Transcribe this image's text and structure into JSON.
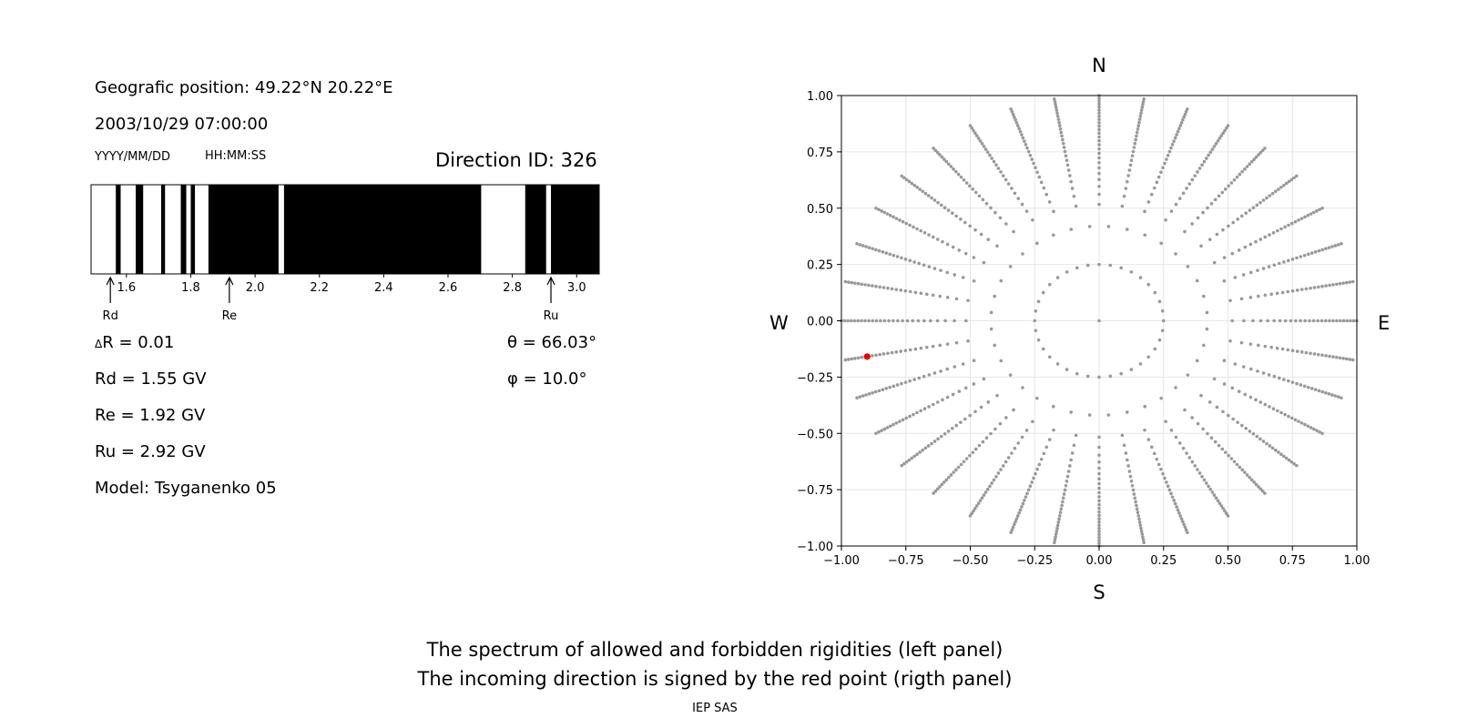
{
  "left": {
    "position_label": "Geografic position: 49.22°N 20.22°E",
    "datetime": "2003/10/29 07:00:00",
    "date_format": "YYYY/MM/DD",
    "time_format": "HH:MM:SS",
    "direction_id": "Direction ID: 326",
    "delta_r": "R = 0.01",
    "delta_symbol": "Δ",
    "rd": "Rd = 1.55 GV",
    "re": "Re = 1.92 GV",
    "ru": "Ru = 2.92 GV",
    "model": "Model: Tsyganenko 05",
    "theta": "θ = 66.03°",
    "phi": "φ = 10.0°",
    "markers": [
      {
        "label": "Rd",
        "value": 1.55
      },
      {
        "label": "Re",
        "value": 1.92
      },
      {
        "label": "Ru",
        "value": 2.92
      }
    ]
  },
  "chart_data": [
    {
      "type": "spectrum",
      "xlim": [
        1.49,
        3.07
      ],
      "ticks": [
        1.6,
        1.8,
        2.0,
        2.2,
        2.4,
        2.6,
        2.8,
        3.0
      ],
      "tick_labels": [
        "1.6",
        "1.8",
        "2.0",
        "2.2",
        "2.4",
        "2.6",
        "2.8",
        "3.0"
      ],
      "forbidden_intervals": [
        [
          1.567,
          1.582
        ],
        [
          1.629,
          1.652
        ],
        [
          1.708,
          1.72
        ],
        [
          1.769,
          1.786
        ],
        [
          1.8,
          1.813
        ],
        [
          1.855,
          2.073
        ],
        [
          2.09,
          2.703
        ],
        [
          2.84,
          2.905
        ],
        [
          2.92,
          3.07
        ]
      ]
    },
    {
      "type": "scatter",
      "xlim": [
        -1.0,
        1.0
      ],
      "ylim": [
        -1.0,
        1.0
      ],
      "xticks": [
        "−1.00",
        "−0.75",
        "−0.50",
        "−0.25",
        "0.00",
        "0.25",
        "0.50",
        "0.75",
        "1.00"
      ],
      "yticks": [
        "1.00",
        "0.75",
        "0.50",
        "0.25",
        "0.00",
        "−0.25",
        "−0.50",
        "−0.75",
        "−1.00"
      ],
      "grid": true,
      "compass": {
        "n": "N",
        "s": "S",
        "w": "W",
        "e": "E"
      },
      "grid_series": {
        "color": "#999999",
        "rings_rho": [
          0.25,
          0.42
        ],
        "spokes_deg_step": 10,
        "spoke_rho_range": [
          0.25,
          1.0
        ]
      },
      "selected_point": {
        "x": -0.9,
        "y": -0.159,
        "color": "#ee0000"
      }
    }
  ],
  "footer": {
    "line1": "The spectrum of allowed and forbidden rigidities (left panel)",
    "line2": "The incoming direction is signed by the red point (rigth panel)",
    "credit": "IEP SAS"
  }
}
